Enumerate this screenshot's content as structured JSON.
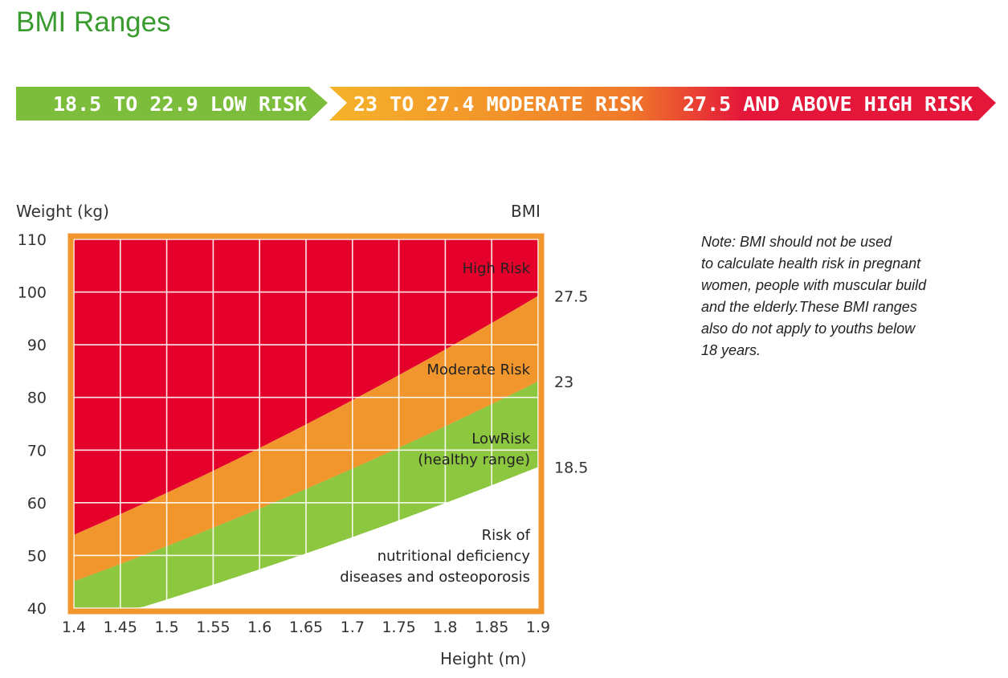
{
  "page": {
    "title": "BMI Ranges"
  },
  "banner": {
    "segments": [
      {
        "label": "18.5 TO 22.9  LOW RISK",
        "color": "#7cbd3c"
      },
      {
        "label": "23 TO 27.4  MODERATE RISK",
        "color": "#f5b32a"
      },
      {
        "label": "27.5 AND ABOVE  HIGH RISK",
        "color": "#e4173a"
      }
    ]
  },
  "note": {
    "lines": [
      "Note: BMI should not be used",
      "to calculate health risk in pregnant",
      "women, people with muscular build",
      "and the elderly.These BMI ranges",
      "also do not apply to youths below",
      "18 years."
    ]
  },
  "chart_data": {
    "type": "area",
    "title": "",
    "xlabel": "Height (m)",
    "ylabel": "Weight (kg)",
    "y2label": "BMI",
    "xlim": [
      1.4,
      1.9
    ],
    "ylim": [
      40,
      110
    ],
    "x_ticks": [
      "1.4",
      "1.45",
      "1.5",
      "1.55",
      "1.6",
      "1.65",
      "1.7",
      "1.75",
      "1.8",
      "1.85",
      "1.9"
    ],
    "y_ticks": [
      "40",
      "50",
      "60",
      "70",
      "80",
      "90",
      "100",
      "110"
    ],
    "grid": true,
    "bmi_boundaries": [
      {
        "bmi": 18.5,
        "label": "18.5"
      },
      {
        "bmi": 23,
        "label": "23"
      },
      {
        "bmi": 27.5,
        "label": "27.5"
      }
    ],
    "zones": [
      {
        "name": "High Risk",
        "label_lines": [
          "High Risk"
        ],
        "color": "#e4002b"
      },
      {
        "name": "Moderate Risk",
        "label_lines": [
          "Moderate Risk"
        ],
        "color": "#f0962d"
      },
      {
        "name": "Low Risk",
        "label_lines": [
          "LowRisk",
          "(healthy range)"
        ],
        "color": "#8dc63f"
      },
      {
        "name": "Risk of nutritional deficiency",
        "label_lines": [
          "Risk of",
          "nutritional deficiency",
          "diseases and osteoporosis"
        ],
        "color": "#ffffff"
      }
    ],
    "frame_color": "#f0962d"
  }
}
